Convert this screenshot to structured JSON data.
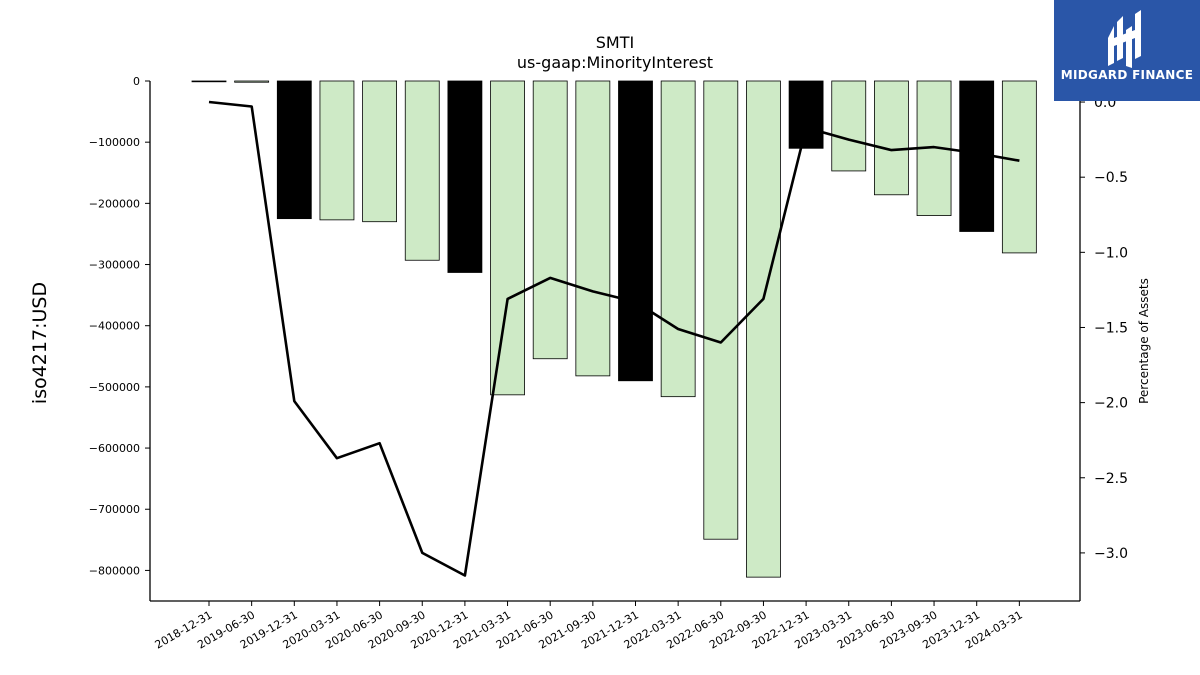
{
  "chart_data": {
    "type": "bar",
    "title": "SMTI",
    "subtitle": "us-gaap:MinorityInterest",
    "ylabel": "iso4217:USD",
    "y2label": "Percentage of Assets",
    "ylim": [
      -850000,
      0
    ],
    "y2lim": [
      -3.32,
      0.14
    ],
    "yticks": [
      "0",
      "−100000",
      "−200000",
      "−300000",
      "−400000",
      "−500000",
      "−600000",
      "−700000",
      "−800000"
    ],
    "y2ticks": [
      "0.0",
      "−0.5",
      "−1.0",
      "−1.5",
      "−2.0",
      "−2.5",
      "−3.0"
    ],
    "categories": [
      "2018-12-31",
      "2019-06-30",
      "2019-12-31",
      "2020-03-31",
      "2020-06-30",
      "2020-09-30",
      "2020-12-31",
      "2021-03-31",
      "2021-06-30",
      "2021-09-30",
      "2021-12-31",
      "2022-03-31",
      "2022-06-30",
      "2022-09-30",
      "2022-12-31",
      "2023-03-31",
      "2023-06-30",
      "2023-09-30",
      "2023-12-31",
      "2024-03-31"
    ],
    "series": [
      {
        "type": "bar",
        "values": [
          0,
          -2000,
          -225000,
          -227000,
          -230000,
          -293000,
          -313000,
          -513000,
          -454000,
          -482000,
          -490000,
          -516000,
          -749000,
          -811000,
          -110000,
          -147000,
          -186000,
          -220000,
          -246000,
          -281000
        ],
        "annual": [
          false,
          false,
          true,
          false,
          false,
          false,
          true,
          false,
          false,
          false,
          true,
          false,
          false,
          false,
          true,
          false,
          false,
          false,
          true,
          false
        ]
      },
      {
        "type": "line",
        "axis": "right",
        "values": [
          -0.0,
          -0.03,
          -1.99,
          -2.37,
          -2.27,
          -3.0,
          -3.15,
          -1.31,
          -1.17,
          -1.26,
          -1.33,
          -1.51,
          -1.6,
          -1.31,
          -0.17,
          -0.25,
          -0.32,
          -0.3,
          -0.34,
          -0.39
        ]
      }
    ],
    "colors": {
      "annual_bar": "#000000",
      "quarter_bar": "#ceeac6",
      "line": "#000000"
    }
  },
  "logo": {
    "text": "MIDGARD FINANCE"
  }
}
